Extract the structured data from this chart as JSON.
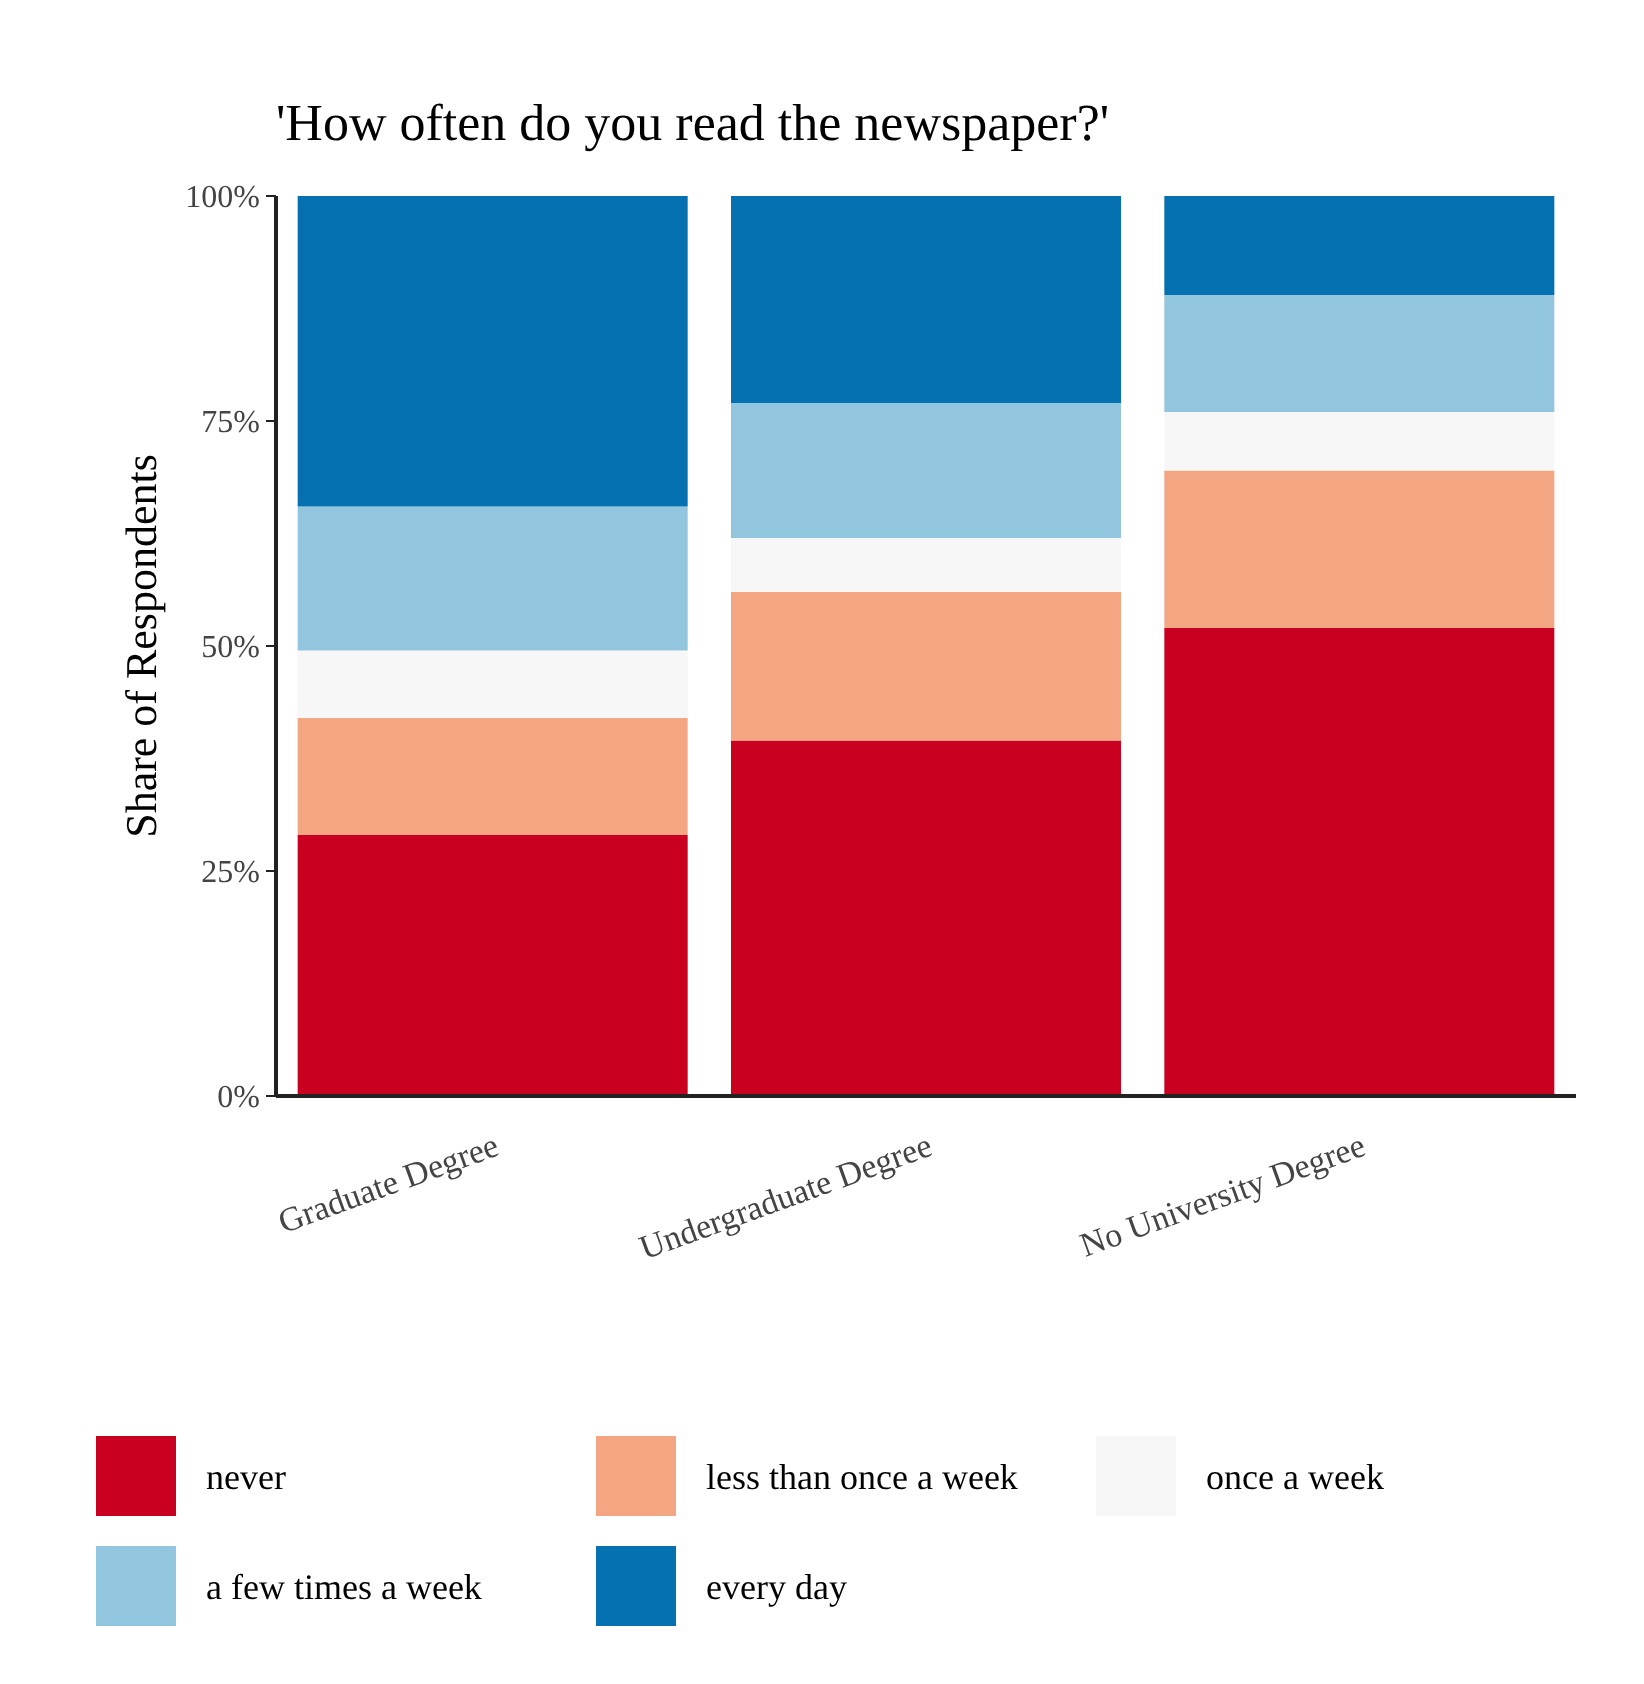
{
  "chart_data": {
    "type": "bar",
    "stacked": true,
    "title": "'How often do you read the newspaper?'",
    "ylabel": "Share of Respondents",
    "categories": [
      "Graduate Degree",
      "Undergraduate Degree",
      "No University Degree"
    ],
    "series": [
      {
        "name": "never",
        "color": "#ca0020",
        "values": [
          29,
          39.5,
          52
        ]
      },
      {
        "name": "less than once a week",
        "color": "#f4a582",
        "values": [
          13,
          16.5,
          17.5
        ]
      },
      {
        "name": "once a week",
        "color": "#f7f7f7",
        "values": [
          7.5,
          6,
          6.5
        ]
      },
      {
        "name": "a few times a week",
        "color": "#92c5de",
        "values": [
          16,
          15,
          13
        ]
      },
      {
        "name": "every day",
        "color": "#0571b0",
        "values": [
          34.5,
          23,
          11
        ]
      }
    ],
    "ylim": [
      0,
      100
    ],
    "yticks": [
      {
        "value": 0,
        "label": "0%"
      },
      {
        "value": 25,
        "label": "25%"
      },
      {
        "value": 50,
        "label": "50%"
      },
      {
        "value": 75,
        "label": "75%"
      },
      {
        "value": 100,
        "label": "100%"
      }
    ],
    "grid": false,
    "legend": "bottom"
  }
}
